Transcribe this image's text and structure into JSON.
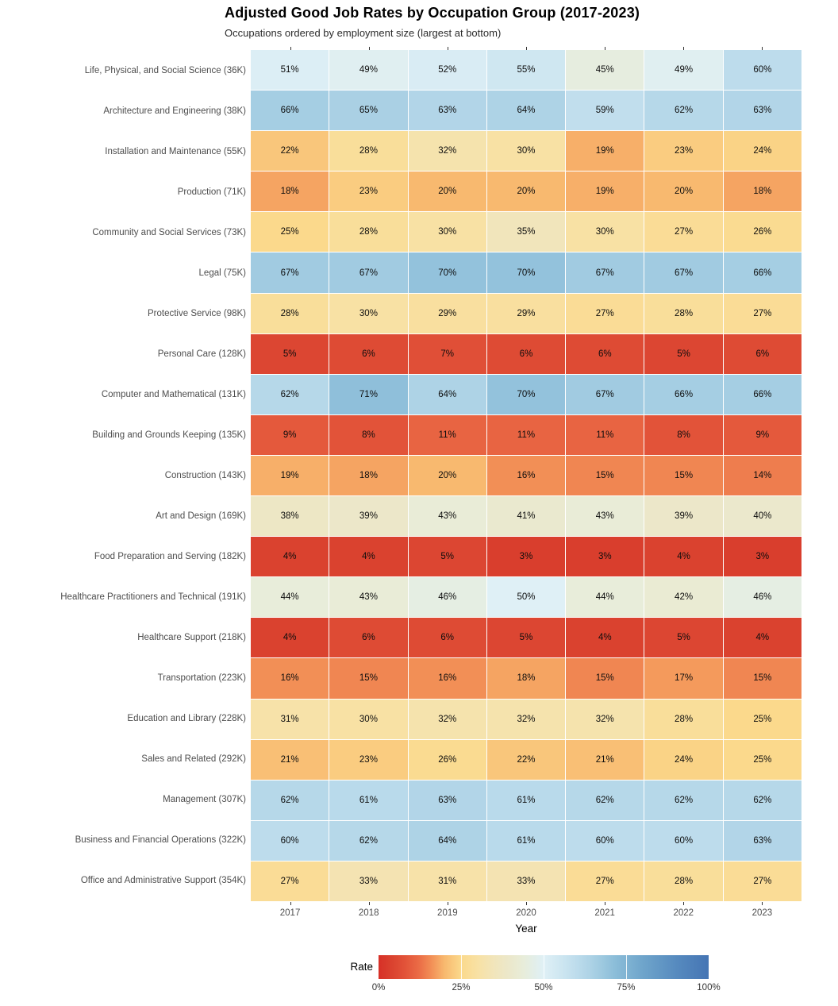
{
  "title": "Adjusted Good Job Rates by Occupation Group (2017-2023)",
  "subtitle": "Occupations ordered by employment size (largest at bottom)",
  "axis": {
    "x_label": "Year",
    "x_ticks": [
      "2017",
      "2018",
      "2019",
      "2020",
      "2021",
      "2022",
      "2023"
    ]
  },
  "legend": {
    "label": "Rate",
    "tick_labels": [
      "0%",
      "25%",
      "50%",
      "75%",
      "100%"
    ],
    "tick_positions": [
      0,
      0.25,
      0.5,
      0.75,
      1
    ]
  },
  "chart_data": {
    "type": "heatmap",
    "title": "Adjusted Good Job Rates by Occupation Group (2017-2023)",
    "subtitle": "Occupations ordered by employment size (largest at bottom)",
    "xlabel": "Year",
    "legend_title": "Rate",
    "unit": "%",
    "categories": [
      "2017",
      "2018",
      "2019",
      "2020",
      "2021",
      "2022",
      "2023"
    ],
    "rows": [
      {
        "label": "Life, Physical, and Social Science (36K)",
        "values": [
          51,
          49,
          52,
          55,
          45,
          49,
          60
        ]
      },
      {
        "label": "Architecture and Engineering (38K)",
        "values": [
          66,
          65,
          63,
          64,
          59,
          62,
          63
        ]
      },
      {
        "label": "Installation and Maintenance (55K)",
        "values": [
          22,
          28,
          32,
          30,
          19,
          23,
          24
        ]
      },
      {
        "label": "Production (71K)",
        "values": [
          18,
          23,
          20,
          20,
          19,
          20,
          18
        ]
      },
      {
        "label": "Community and Social Services (73K)",
        "values": [
          25,
          28,
          30,
          35,
          30,
          27,
          26
        ]
      },
      {
        "label": "Legal (75K)",
        "values": [
          67,
          67,
          70,
          70,
          67,
          67,
          66
        ]
      },
      {
        "label": "Protective Service (98K)",
        "values": [
          28,
          30,
          29,
          29,
          27,
          28,
          27
        ]
      },
      {
        "label": "Personal Care (128K)",
        "values": [
          5,
          6,
          7,
          6,
          6,
          5,
          6
        ]
      },
      {
        "label": "Computer and Mathematical (131K)",
        "values": [
          62,
          71,
          64,
          70,
          67,
          66,
          66
        ]
      },
      {
        "label": "Building and Grounds Keeping (135K)",
        "values": [
          9,
          8,
          11,
          11,
          11,
          8,
          9
        ]
      },
      {
        "label": "Construction (143K)",
        "values": [
          19,
          18,
          20,
          16,
          15,
          15,
          14
        ]
      },
      {
        "label": "Art and Design (169K)",
        "values": [
          38,
          39,
          43,
          41,
          43,
          39,
          40
        ]
      },
      {
        "label": "Food Preparation and Serving (182K)",
        "values": [
          4,
          4,
          5,
          3,
          3,
          4,
          3
        ]
      },
      {
        "label": "Healthcare Practitioners and Technical (191K)",
        "values": [
          44,
          43,
          46,
          50,
          44,
          42,
          46
        ]
      },
      {
        "label": "Healthcare Support (218K)",
        "values": [
          4,
          6,
          6,
          5,
          4,
          5,
          4
        ]
      },
      {
        "label": "Transportation (223K)",
        "values": [
          16,
          15,
          16,
          18,
          15,
          17,
          15
        ]
      },
      {
        "label": "Education and Library (228K)",
        "values": [
          31,
          30,
          32,
          32,
          32,
          28,
          25
        ]
      },
      {
        "label": "Sales and Related (292K)",
        "values": [
          21,
          23,
          26,
          22,
          21,
          24,
          25
        ]
      },
      {
        "label": "Management (307K)",
        "values": [
          62,
          61,
          63,
          61,
          62,
          62,
          62
        ]
      },
      {
        "label": "Business and Financial Operations (322K)",
        "values": [
          60,
          62,
          64,
          61,
          60,
          60,
          63
        ]
      },
      {
        "label": "Office and Administrative Support (354K)",
        "values": [
          27,
          33,
          31,
          33,
          27,
          28,
          27
        ]
      }
    ],
    "color_scale": {
      "name": "RdYlBu-like",
      "domain": [
        0,
        100
      ],
      "stops": [
        [
          0.0,
          "#d73027"
        ],
        [
          0.04,
          "#da422f"
        ],
        [
          0.08,
          "#e25339"
        ],
        [
          0.12,
          "#ea6a45"
        ],
        [
          0.16,
          "#f28f56"
        ],
        [
          0.2,
          "#f8b96f"
        ],
        [
          0.25,
          "#fbd98c"
        ],
        [
          0.3,
          "#f8e1a4"
        ],
        [
          0.35,
          "#f1e5bb"
        ],
        [
          0.4,
          "#ebe8cc"
        ],
        [
          0.44,
          "#e8edda"
        ],
        [
          0.47,
          "#e3eee8"
        ],
        [
          0.5,
          "#dff0f6"
        ],
        [
          0.55,
          "#cfe7f1"
        ],
        [
          0.6,
          "#bddcec"
        ],
        [
          0.64,
          "#aed3e6"
        ],
        [
          0.68,
          "#9cc8df"
        ],
        [
          0.72,
          "#8abcd8"
        ],
        [
          0.8,
          "#6fa5cb"
        ],
        [
          0.9,
          "#578bbf"
        ],
        [
          1.0,
          "#4575b4"
        ]
      ]
    },
    "grid": false,
    "legend_position": "bottom"
  }
}
